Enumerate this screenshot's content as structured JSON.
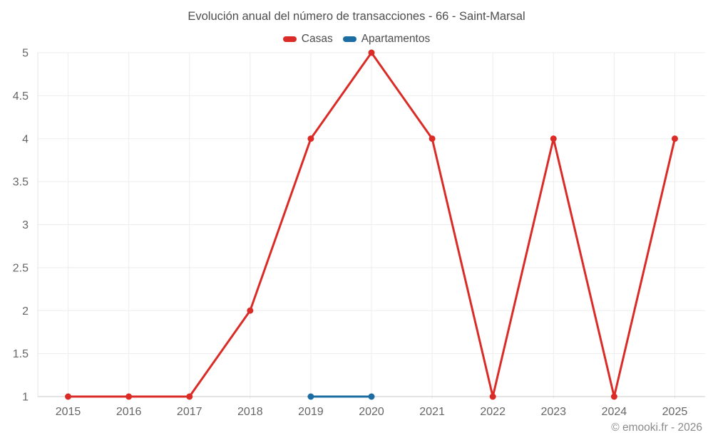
{
  "header": {
    "title": "Evolución anual del número de transacciones - 66 - Saint-Marsal"
  },
  "footer": {
    "copyright": "© emooki.fr - 2026"
  },
  "chart_data": {
    "type": "line",
    "title": "Evolución anual del número de transacciones - 66 - Saint-Marsal",
    "categories": [
      "2015",
      "2016",
      "2017",
      "2018",
      "2019",
      "2020",
      "2021",
      "2022",
      "2023",
      "2024",
      "2025"
    ],
    "series": [
      {
        "name": "Casas",
        "color": "#db2b27",
        "values": [
          1,
          1,
          1,
          2,
          4,
          5,
          4,
          1,
          4,
          1,
          4
        ]
      },
      {
        "name": "Apartamentos",
        "color": "#1b6ca3",
        "values": [
          null,
          null,
          null,
          null,
          1,
          1,
          null,
          null,
          null,
          null,
          null
        ]
      }
    ],
    "ylim": [
      1,
      5
    ],
    "y_ticks": [
      1,
      1.5,
      2,
      2.5,
      3,
      3.5,
      4,
      4.5,
      5
    ],
    "xlabel": "",
    "ylabel": "",
    "grid": true,
    "legend_position": "top",
    "colors": {
      "gridline": "#ededed",
      "x_axis_line": "#c9c9c9",
      "y_axis_line": "#e4e4e4",
      "tick_label": "#666666",
      "title_text": "#4d4d4d",
      "footer_text": "#8a8a8a"
    }
  }
}
